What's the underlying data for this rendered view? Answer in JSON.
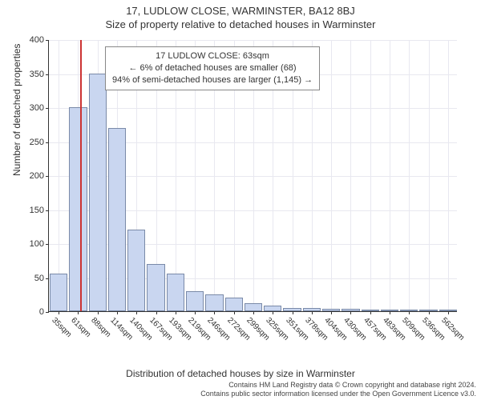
{
  "title_main": "17, LUDLOW CLOSE, WARMINSTER, BA12 8BJ",
  "title_sub": "Size of property relative to detached houses in Warminster",
  "ylabel": "Number of detached properties",
  "xlabel": "Distribution of detached houses by size in Warminster",
  "chart": {
    "type": "bar",
    "ylim": [
      0,
      400
    ],
    "ytick_step": 50,
    "bar_fill": "#c9d6f0",
    "bar_border": "#7a8aa8",
    "grid_color": "#e8e8f0",
    "background": "#ffffff",
    "label_fontsize": 11,
    "xticks": [
      "35sqm",
      "61sqm",
      "88sqm",
      "114sqm",
      "140sqm",
      "167sqm",
      "193sqm",
      "219sqm",
      "246sqm",
      "272sqm",
      "299sqm",
      "325sqm",
      "351sqm",
      "378sqm",
      "404sqm",
      "430sqm",
      "457sqm",
      "483sqm",
      "509sqm",
      "536sqm",
      "562sqm"
    ],
    "bars": [
      55,
      300,
      350,
      270,
      120,
      70,
      55,
      30,
      25,
      20,
      12,
      8,
      5,
      5,
      4,
      4,
      2,
      2,
      2,
      1,
      1
    ],
    "marker": {
      "position_index": 1.1,
      "color": "#cc3333"
    }
  },
  "info_box": {
    "line1": "17 LUDLOW CLOSE: 63sqm",
    "line2": "← 6% of detached houses are smaller (68)",
    "line3": "94% of semi-detached houses are larger (1,145) →"
  },
  "footer": {
    "line1": "Contains HM Land Registry data © Crown copyright and database right 2024.",
    "line2": "Contains public sector information licensed under the Open Government Licence v3.0."
  }
}
